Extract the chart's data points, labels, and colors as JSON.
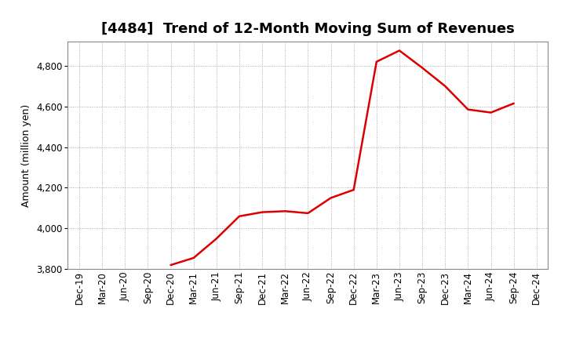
{
  "title": "[4484]  Trend of 12-Month Moving Sum of Revenues",
  "ylabel": "Amount (million yen)",
  "line_color": "#dd0000",
  "background_color": "#ffffff",
  "plot_bg_color": "#ffffff",
  "grid_color": "#999999",
  "ylim": [
    3800,
    4920
  ],
  "yticks": [
    3800,
    4000,
    4200,
    4400,
    4600,
    4800
  ],
  "dates": [
    "Dec-19",
    "Mar-20",
    "Jun-20",
    "Sep-20",
    "Dec-20",
    "Mar-21",
    "Jun-21",
    "Sep-21",
    "Dec-21",
    "Mar-22",
    "Jun-22",
    "Sep-22",
    "Dec-22",
    "Mar-23",
    "Jun-23",
    "Sep-23",
    "Dec-23",
    "Mar-24",
    "Jun-24",
    "Sep-24",
    "Dec-24"
  ],
  "values": [
    null,
    null,
    null,
    null,
    3820,
    3855,
    3950,
    4060,
    4080,
    4085,
    4075,
    4150,
    4190,
    4820,
    4875,
    4790,
    4700,
    4585,
    4570,
    4615,
    null
  ],
  "title_fontsize": 13,
  "axis_fontsize": 9,
  "tick_fontsize": 8.5
}
